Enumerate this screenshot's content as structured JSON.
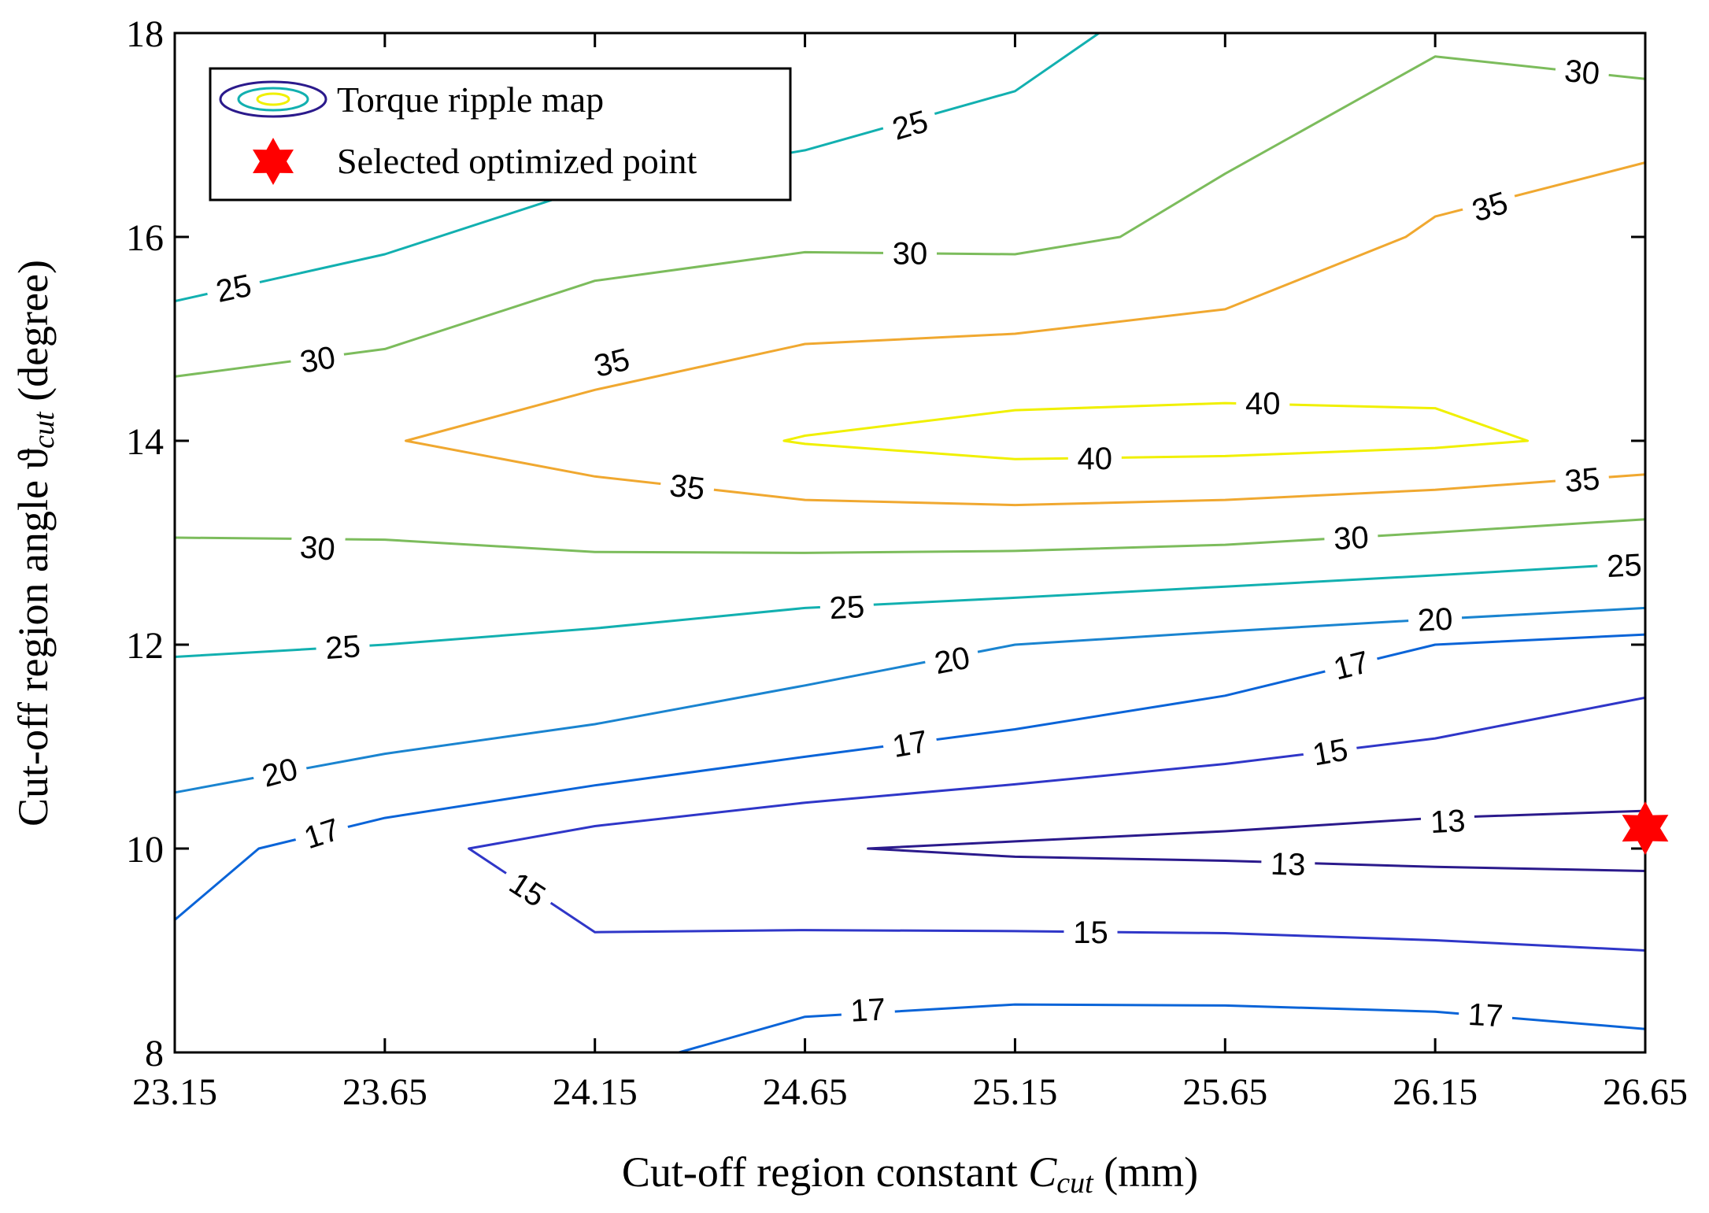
{
  "chart_data": {
    "type": "contour",
    "title": "",
    "xlabel": {
      "prefix": "Cut-off region constant ",
      "symbol": "C",
      "subscript": "cut",
      "suffix": "  (mm)"
    },
    "ylabel": {
      "prefix": "Cut-off region angle ",
      "symbol": "ϑ",
      "subscript": "cut",
      "suffix": "  (degree)"
    },
    "xlim": [
      23.15,
      26.65
    ],
    "ylim": [
      8,
      18
    ],
    "xticks": [
      "23.15",
      "23.65",
      "24.15",
      "24.65",
      "25.15",
      "25.65",
      "26.15",
      "26.65"
    ],
    "yticks": [
      "8",
      "10",
      "12",
      "14",
      "16",
      "18"
    ],
    "legend": {
      "position": "top-left",
      "items": [
        {
          "label": "Torque ripple map",
          "marker": "contour-ellipses"
        },
        {
          "label": "Selected optimized point",
          "marker": "star",
          "color": "#ff0000"
        }
      ]
    },
    "contours": [
      {
        "level": 13,
        "color": "#2b1a8c",
        "closed": true,
        "points": [
          [
            26.65,
            10.37
          ],
          [
            26.15,
            10.3
          ],
          [
            25.65,
            10.17
          ],
          [
            25.15,
            10.07
          ],
          [
            24.8,
            10.0
          ],
          [
            25.15,
            9.92
          ],
          [
            25.65,
            9.88
          ],
          [
            26.15,
            9.82
          ],
          [
            26.65,
            9.78
          ]
        ]
      },
      {
        "level": 15,
        "color": "#2f36c8",
        "closed": false,
        "points": [
          [
            26.65,
            11.48
          ],
          [
            26.15,
            11.08
          ],
          [
            25.65,
            10.83
          ],
          [
            25.15,
            10.63
          ],
          [
            24.65,
            10.45
          ],
          [
            24.15,
            10.22
          ],
          [
            23.85,
            10.0
          ],
          [
            24.15,
            9.18
          ],
          [
            24.65,
            9.2
          ],
          [
            25.15,
            9.19
          ],
          [
            25.65,
            9.17
          ],
          [
            26.15,
            9.1
          ],
          [
            26.65,
            9.0
          ]
        ]
      },
      {
        "level": 17,
        "color": "#0a64d8",
        "closed": false,
        "points": [
          [
            23.15,
            9.3
          ],
          [
            23.35,
            10.0
          ],
          [
            23.65,
            10.3
          ],
          [
            24.15,
            10.62
          ],
          [
            24.65,
            10.9
          ],
          [
            25.15,
            11.17
          ],
          [
            25.65,
            11.5
          ],
          [
            26.15,
            12.0
          ],
          [
            26.65,
            12.1
          ]
        ]
      },
      {
        "level": 17,
        "color": "#0a64d8",
        "closed": false,
        "points": [
          [
            24.35,
            8.0
          ],
          [
            24.65,
            8.35
          ],
          [
            25.15,
            8.47
          ],
          [
            25.65,
            8.46
          ],
          [
            26.15,
            8.4
          ],
          [
            26.65,
            8.23
          ]
        ]
      },
      {
        "level": 20,
        "color": "#1a84d0",
        "closed": false,
        "points": [
          [
            23.15,
            10.55
          ],
          [
            23.65,
            10.93
          ],
          [
            24.15,
            11.22
          ],
          [
            24.65,
            11.6
          ],
          [
            25.15,
            12.0
          ],
          [
            25.65,
            12.13
          ],
          [
            26.15,
            12.25
          ],
          [
            26.65,
            12.36
          ]
        ]
      },
      {
        "level": 25,
        "color": "#12b0b0",
        "closed": false,
        "points": [
          [
            23.15,
            11.88
          ],
          [
            23.65,
            12.0
          ],
          [
            24.15,
            12.16
          ],
          [
            24.65,
            12.36
          ],
          [
            25.15,
            12.46
          ],
          [
            25.65,
            12.57
          ],
          [
            26.15,
            12.68
          ],
          [
            26.65,
            12.8
          ]
        ]
      },
      {
        "level": 25,
        "color": "#12b0b0",
        "closed": false,
        "points": [
          [
            23.15,
            15.37
          ],
          [
            23.65,
            15.83
          ],
          [
            24.15,
            16.5
          ],
          [
            24.65,
            16.85
          ],
          [
            25.15,
            17.43
          ],
          [
            25.35,
            18.0
          ]
        ]
      },
      {
        "level": 30,
        "color": "#7cbc5c",
        "closed": false,
        "points": [
          [
            23.15,
            13.05
          ],
          [
            23.65,
            13.03
          ],
          [
            24.15,
            12.91
          ],
          [
            24.65,
            12.9
          ],
          [
            25.15,
            12.92
          ],
          [
            25.65,
            12.98
          ],
          [
            26.15,
            13.1
          ],
          [
            26.65,
            13.23
          ]
        ]
      },
      {
        "level": 30,
        "color": "#7cbc5c",
        "closed": false,
        "points": [
          [
            23.15,
            14.63
          ],
          [
            23.65,
            14.9
          ],
          [
            24.15,
            15.57
          ],
          [
            24.65,
            15.85
          ],
          [
            25.15,
            15.83
          ],
          [
            25.4,
            16.0
          ],
          [
            25.65,
            16.62
          ],
          [
            26.15,
            17.77
          ],
          [
            26.65,
            17.55
          ]
        ]
      },
      {
        "level": 35,
        "color": "#f0a830",
        "closed": false,
        "points": [
          [
            26.65,
            13.67
          ],
          [
            26.15,
            13.52
          ],
          [
            25.65,
            13.42
          ],
          [
            25.15,
            13.37
          ],
          [
            24.65,
            13.42
          ],
          [
            24.15,
            13.65
          ],
          [
            23.7,
            14.0
          ],
          [
            24.15,
            14.5
          ],
          [
            24.65,
            14.95
          ],
          [
            25.15,
            15.05
          ],
          [
            25.65,
            15.29
          ],
          [
            26.08,
            16.0
          ],
          [
            26.15,
            16.2
          ],
          [
            26.65,
            16.73
          ]
        ]
      },
      {
        "level": 40,
        "color": "#f0f000",
        "closed": true,
        "points": [
          [
            24.6,
            14.0
          ],
          [
            24.65,
            14.05
          ],
          [
            25.15,
            14.3
          ],
          [
            25.65,
            14.37
          ],
          [
            26.15,
            14.32
          ],
          [
            26.37,
            14.0
          ],
          [
            26.15,
            13.93
          ],
          [
            25.65,
            13.85
          ],
          [
            25.15,
            13.82
          ],
          [
            24.65,
            13.97
          ]
        ]
      }
    ],
    "contour_labels": [
      {
        "text": "13",
        "x": 26.18,
        "y": 10.27,
        "angle": -3
      },
      {
        "text": "13",
        "x": 25.8,
        "y": 9.85,
        "angle": 2
      },
      {
        "text": "15",
        "x": 23.99,
        "y": 9.6,
        "angle": 33
      },
      {
        "text": "15",
        "x": 25.33,
        "y": 9.18,
        "angle": 0
      },
      {
        "text": "15",
        "x": 25.9,
        "y": 10.95,
        "angle": -10
      },
      {
        "text": "17",
        "x": 23.5,
        "y": 10.15,
        "angle": -18
      },
      {
        "text": "17",
        "x": 24.9,
        "y": 11.03,
        "angle": -10
      },
      {
        "text": "17",
        "x": 25.95,
        "y": 11.8,
        "angle": -14
      },
      {
        "text": "17",
        "x": 24.8,
        "y": 8.42,
        "angle": -3
      },
      {
        "text": "17",
        "x": 26.27,
        "y": 8.37,
        "angle": 3
      },
      {
        "text": "20",
        "x": 23.4,
        "y": 10.75,
        "angle": -15
      },
      {
        "text": "20",
        "x": 25.0,
        "y": 11.85,
        "angle": -11
      },
      {
        "text": "20",
        "x": 26.15,
        "y": 12.25,
        "angle": -3
      },
      {
        "text": "25",
        "x": 23.55,
        "y": 11.98,
        "angle": -4
      },
      {
        "text": "25",
        "x": 24.75,
        "y": 12.37,
        "angle": -3
      },
      {
        "text": "25",
        "x": 26.6,
        "y": 12.78,
        "angle": -3
      },
      {
        "text": "25",
        "x": 23.29,
        "y": 15.5,
        "angle": -12
      },
      {
        "text": "25",
        "x": 24.9,
        "y": 17.1,
        "angle": -16
      },
      {
        "text": "30",
        "x": 23.49,
        "y": 12.95,
        "angle": 5
      },
      {
        "text": "30",
        "x": 25.95,
        "y": 13.05,
        "angle": -3
      },
      {
        "text": "30",
        "x": 23.49,
        "y": 14.8,
        "angle": -10
      },
      {
        "text": "30",
        "x": 24.9,
        "y": 15.84,
        "angle": 0
      },
      {
        "text": "30",
        "x": 26.5,
        "y": 17.62,
        "angle": 6
      },
      {
        "text": "35",
        "x": 24.37,
        "y": 13.55,
        "angle": 7
      },
      {
        "text": "35",
        "x": 26.5,
        "y": 13.62,
        "angle": -5
      },
      {
        "text": "35",
        "x": 24.19,
        "y": 14.77,
        "angle": -14
      },
      {
        "text": "35",
        "x": 26.28,
        "y": 16.3,
        "angle": -17
      },
      {
        "text": "40",
        "x": 25.34,
        "y": 13.83,
        "angle": 0
      },
      {
        "text": "40",
        "x": 25.74,
        "y": 14.37,
        "angle": 0
      }
    ],
    "selected_point": {
      "x": 26.65,
      "y": 10.2,
      "color": "#ff0000",
      "marker": "hexagram"
    }
  }
}
